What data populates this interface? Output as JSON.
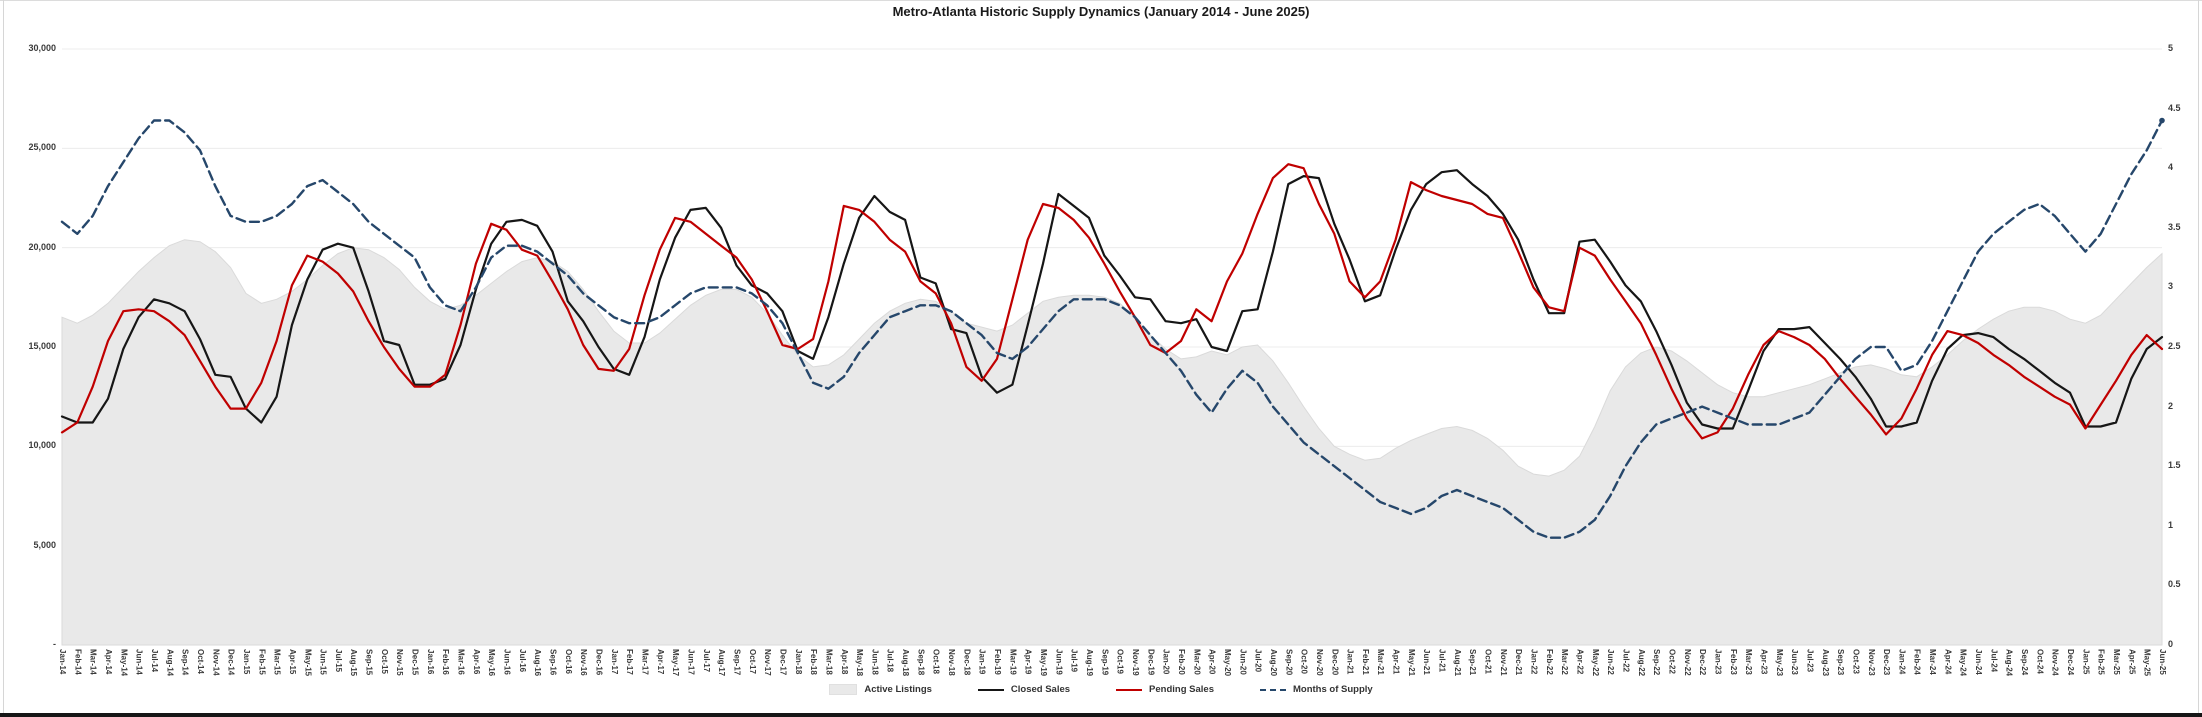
{
  "title": "Metro-Atlanta Historic Supply Dynamics (January 2014 - June 2025)",
  "legend": [
    {
      "label": "Active Listings",
      "type": "area",
      "color": "#e9e9e9"
    },
    {
      "label": "Closed Sales",
      "type": "line",
      "color": "#161616"
    },
    {
      "label": "Pending Sales",
      "type": "line",
      "color": "#c00000"
    },
    {
      "label": "Months of Supply",
      "type": "dashed-line",
      "color": "#26476b"
    }
  ],
  "chart_data": {
    "type": "combo",
    "title": "Metro-Atlanta Historic Supply Dynamics (January 2014 - June 2025)",
    "xlabel": "",
    "left_axis": {
      "ylabel": "",
      "ylim": [
        0,
        30000
      ],
      "grid": true,
      "gridline_values": [
        5000,
        10000,
        15000,
        20000,
        25000,
        30000
      ],
      "ticks": [
        {
          "label": "-",
          "value": 0
        },
        {
          "label": "5,000",
          "value": 5000
        },
        {
          "label": "10,000",
          "value": 10000
        },
        {
          "label": "15,000",
          "value": 15000
        },
        {
          "label": "20,000",
          "value": 20000
        },
        {
          "label": "25,000",
          "value": 25000
        },
        {
          "label": "30,000",
          "value": 30000
        }
      ]
    },
    "right_axis": {
      "ylabel": "",
      "ylim": [
        0,
        5
      ],
      "ticks": [
        {
          "label": "0",
          "value": 0
        },
        {
          "label": "0.5",
          "value": 0.5
        },
        {
          "label": "1",
          "value": 1
        },
        {
          "label": "1.5",
          "value": 1.5
        },
        {
          "label": "2",
          "value": 2
        },
        {
          "label": "2.5",
          "value": 2.5
        },
        {
          "label": "3",
          "value": 3
        },
        {
          "label": "3.5",
          "value": 3.5
        },
        {
          "label": "4",
          "value": 4
        },
        {
          "label": "4.5",
          "value": 4.5
        },
        {
          "label": "5",
          "value": 5
        }
      ]
    },
    "legend_position": "bottom-center",
    "categories": [
      "Jan-14",
      "Feb-14",
      "Mar-14",
      "Apr-14",
      "May-14",
      "Jun-14",
      "Jul-14",
      "Aug-14",
      "Sep-14",
      "Oct-14",
      "Nov-14",
      "Dec-14",
      "Jan-15",
      "Feb-15",
      "Mar-15",
      "Apr-15",
      "May-15",
      "Jun-15",
      "Jul-15",
      "Aug-15",
      "Sep-15",
      "Oct-15",
      "Nov-15",
      "Dec-15",
      "Jan-16",
      "Feb-16",
      "Mar-16",
      "Apr-16",
      "May-16",
      "Jun-16",
      "Jul-16",
      "Aug-16",
      "Sep-16",
      "Oct-16",
      "Nov-16",
      "Dec-16",
      "Jan-17",
      "Feb-17",
      "Mar-17",
      "Apr-17",
      "May-17",
      "Jun-17",
      "Jul-17",
      "Aug-17",
      "Sep-17",
      "Oct-17",
      "Nov-17",
      "Dec-17",
      "Jan-18",
      "Feb-18",
      "Mar-18",
      "Apr-18",
      "May-18",
      "Jun-18",
      "Jul-18",
      "Aug-18",
      "Sep-18",
      "Oct-18",
      "Nov-18",
      "Dec-18",
      "Jan-19",
      "Feb-19",
      "Mar-19",
      "Apr-19",
      "May-19",
      "Jun-19",
      "Jul-19",
      "Aug-19",
      "Sep-19",
      "Oct-19",
      "Nov-19",
      "Dec-19",
      "Jan-20",
      "Feb-20",
      "Mar-20",
      "Apr-20",
      "May-20",
      "Jun-20",
      "Jul-20",
      "Aug-20",
      "Sep-20",
      "Oct-20",
      "Nov-20",
      "Dec-20",
      "Jan-21",
      "Feb-21",
      "Mar-21",
      "Apr-21",
      "May-21",
      "Jun-21",
      "Jul-21",
      "Aug-21",
      "Sep-21",
      "Oct-21",
      "Nov-21",
      "Dec-21",
      "Jan-22",
      "Feb-22",
      "Mar-22",
      "Apr-22",
      "May-22",
      "Jun-22",
      "Jul-22",
      "Aug-22",
      "Sep-22",
      "Oct-22",
      "Nov-22",
      "Dec-22",
      "Jan-23",
      "Feb-23",
      "Mar-23",
      "Apr-23",
      "May-23",
      "Jun-23",
      "Jul-23",
      "Aug-23",
      "Sep-23",
      "Oct-23",
      "Nov-23",
      "Dec-23",
      "Jan-24",
      "Feb-24",
      "Mar-24",
      "Apr-24",
      "May-24",
      "Jun-24",
      "Jul-24",
      "Aug-24",
      "Sep-24",
      "Oct-24",
      "Nov-24",
      "Dec-24",
      "Jan-25",
      "Feb-25",
      "Mar-25",
      "Apr-25",
      "May-25",
      "Jun-25"
    ],
    "series": [
      {
        "name": "Active Listings",
        "type": "area",
        "axis": "left",
        "color": "#e9e9e9",
        "edge_color": "#dadada",
        "values": [
          16500,
          16200,
          16600,
          17200,
          18000,
          18800,
          19500,
          20100,
          20400,
          20300,
          19800,
          19000,
          17700,
          17200,
          17400,
          17800,
          18400,
          19100,
          19700,
          20000,
          19900,
          19500,
          18900,
          18000,
          17300,
          16900,
          17100,
          17600,
          18200,
          18800,
          19300,
          19500,
          19300,
          18800,
          17900,
          16800,
          15800,
          15200,
          15200,
          15700,
          16400,
          17100,
          17600,
          17900,
          17900,
          17500,
          16700,
          15600,
          14600,
          14000,
          14100,
          14600,
          15400,
          16200,
          16800,
          17200,
          17400,
          17300,
          16800,
          16200,
          16000,
          15800,
          16100,
          16700,
          17300,
          17500,
          17600,
          17600,
          17500,
          17200,
          16500,
          15600,
          14900,
          14400,
          14500,
          14800,
          14600,
          15000,
          15100,
          14300,
          13200,
          12000,
          10900,
          10000,
          9600,
          9300,
          9400,
          9900,
          10300,
          10600,
          10900,
          11000,
          10800,
          10400,
          9800,
          9000,
          8600,
          8500,
          8800,
          9500,
          11000,
          12800,
          14000,
          14700,
          15000,
          14800,
          14300,
          13700,
          13100,
          12700,
          12500,
          12500,
          12700,
          12900,
          13100,
          13400,
          13700,
          14000,
          14100,
          13900,
          13600,
          13500,
          14000,
          14600,
          15300,
          15900,
          16400,
          16800,
          17000,
          17000,
          16800,
          16400,
          16200,
          16600,
          17400,
          18200,
          19000,
          19700
        ]
      },
      {
        "name": "Closed Sales",
        "type": "line",
        "axis": "left",
        "color": "#161616",
        "stroke_width": 2.2,
        "values": [
          11500,
          11200,
          11200,
          12400,
          14900,
          16500,
          17400,
          17200,
          16800,
          15400,
          13600,
          13500,
          11900,
          11200,
          12500,
          16100,
          18400,
          19900,
          20200,
          20000,
          17800,
          15300,
          15100,
          13100,
          13100,
          13400,
          15100,
          17900,
          20200,
          21300,
          21400,
          21100,
          19800,
          17300,
          16300,
          15000,
          13900,
          13600,
          15500,
          18400,
          20500,
          21900,
          22000,
          21000,
          19100,
          18100,
          17700,
          16800,
          14800,
          14400,
          16500,
          19200,
          21500,
          22600,
          21800,
          21400,
          18500,
          18200,
          15900,
          15700,
          13500,
          12700,
          13100,
          16100,
          19200,
          22700,
          22100,
          21500,
          19600,
          18600,
          17500,
          17400,
          16300,
          16200,
          16400,
          15000,
          14800,
          16800,
          16900,
          19800,
          23200,
          23600,
          23500,
          21200,
          19400,
          17300,
          17600,
          19900,
          21900,
          23200,
          23800,
          23900,
          23200,
          22600,
          21700,
          20400,
          18400,
          16700,
          16700,
          20300,
          20400,
          19300,
          18100,
          17300,
          15800,
          14100,
          12200,
          11100,
          10900,
          10900,
          12800,
          14800,
          15900,
          15900,
          16000,
          15200,
          14400,
          13500,
          12400,
          11000,
          11000,
          11200,
          13300,
          14900,
          15600,
          15700,
          15500,
          14900,
          14400,
          13800,
          13200,
          12700,
          11000,
          11000,
          11200,
          13400,
          14900,
          15500
        ]
      },
      {
        "name": "Pending Sales",
        "type": "line",
        "axis": "left",
        "color": "#c00000",
        "stroke_width": 2.2,
        "values": [
          10700,
          11200,
          13000,
          15300,
          16800,
          16900,
          16800,
          16300,
          15600,
          14300,
          13000,
          11900,
          11900,
          13200,
          15300,
          18100,
          19600,
          19300,
          18700,
          17800,
          16300,
          15000,
          13900,
          13000,
          13000,
          13600,
          16100,
          19200,
          21200,
          20900,
          19900,
          19600,
          18300,
          16900,
          15100,
          13900,
          13800,
          14900,
          17600,
          19900,
          21500,
          21300,
          20700,
          20100,
          19500,
          18400,
          16800,
          15100,
          14900,
          15400,
          18300,
          22100,
          21900,
          21300,
          20400,
          19800,
          18300,
          17700,
          16200,
          14000,
          13300,
          14400,
          17400,
          20400,
          22200,
          22000,
          21400,
          20500,
          19200,
          17800,
          16500,
          15100,
          14700,
          15300,
          16900,
          16300,
          18300,
          19700,
          21700,
          23500,
          24200,
          24000,
          22200,
          20700,
          18300,
          17500,
          18300,
          20400,
          23300,
          22900,
          22600,
          22400,
          22200,
          21700,
          21500,
          19800,
          18000,
          17000,
          16800,
          20000,
          19600,
          18400,
          17300,
          16200,
          14600,
          12900,
          11400,
          10400,
          10700,
          11900,
          13600,
          15100,
          15800,
          15500,
          15100,
          14400,
          13400,
          12500,
          11600,
          10600,
          11400,
          12900,
          14600,
          15800,
          15600,
          15200,
          14600,
          14100,
          13500,
          13000,
          12500,
          12100,
          10900,
          12100,
          13300,
          14600,
          15600,
          14900
        ]
      },
      {
        "name": "Months of Supply",
        "type": "dashed-line",
        "axis": "right",
        "color": "#26476b",
        "stroke_width": 2.4,
        "dash": "9 5",
        "end_marker": true,
        "values": [
          3.55,
          3.45,
          3.6,
          3.85,
          4.05,
          4.25,
          4.4,
          4.4,
          4.3,
          4.15,
          3.85,
          3.6,
          3.55,
          3.55,
          3.6,
          3.7,
          3.85,
          3.9,
          3.8,
          3.7,
          3.55,
          3.45,
          3.35,
          3.25,
          3.0,
          2.85,
          2.8,
          3.0,
          3.25,
          3.35,
          3.35,
          3.3,
          3.2,
          3.1,
          2.95,
          2.85,
          2.75,
          2.7,
          2.7,
          2.75,
          2.85,
          2.95,
          3.0,
          3.0,
          3.0,
          2.95,
          2.85,
          2.7,
          2.45,
          2.2,
          2.15,
          2.25,
          2.45,
          2.6,
          2.75,
          2.8,
          2.85,
          2.85,
          2.8,
          2.7,
          2.6,
          2.45,
          2.4,
          2.5,
          2.65,
          2.8,
          2.9,
          2.9,
          2.9,
          2.85,
          2.75,
          2.6,
          2.45,
          2.3,
          2.1,
          1.95,
          2.15,
          2.3,
          2.2,
          2.0,
          1.85,
          1.7,
          1.6,
          1.5,
          1.4,
          1.3,
          1.2,
          1.15,
          1.1,
          1.15,
          1.25,
          1.3,
          1.25,
          1.2,
          1.15,
          1.05,
          0.95,
          0.9,
          0.9,
          0.95,
          1.05,
          1.25,
          1.5,
          1.7,
          1.85,
          1.9,
          1.95,
          2.0,
          1.95,
          1.9,
          1.85,
          1.85,
          1.85,
          1.9,
          1.95,
          2.1,
          2.25,
          2.4,
          2.5,
          2.5,
          2.3,
          2.35,
          2.55,
          2.8,
          3.05,
          3.3,
          3.45,
          3.55,
          3.65,
          3.7,
          3.6,
          3.45,
          3.3,
          3.45,
          3.7,
          3.95,
          4.15,
          4.4
        ]
      }
    ]
  }
}
